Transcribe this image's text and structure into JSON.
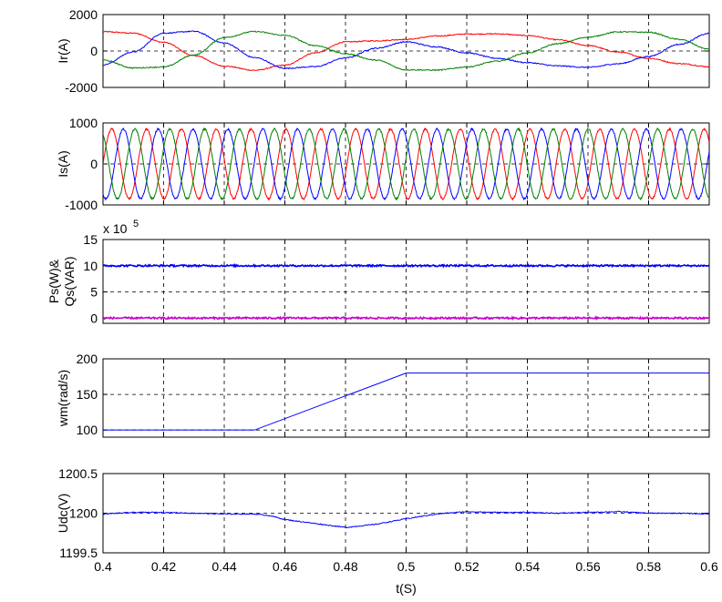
{
  "chart_data": [
    {
      "type": "line",
      "ylabel": "Ir(A)",
      "xlim": [
        0.4,
        0.6
      ],
      "ylim": [
        -2000,
        2000
      ],
      "yticks": [
        -2000,
        0,
        2000
      ],
      "grid": true,
      "series": [
        {
          "color": "#ff0000",
          "x": [
            0.4,
            0.41,
            0.42,
            0.43,
            0.44,
            0.45,
            0.46,
            0.47,
            0.48,
            0.49,
            0.5,
            0.51,
            0.52,
            0.53,
            0.54,
            0.55,
            0.56,
            0.57,
            0.58,
            0.59,
            0.6
          ],
          "y": [
            1060,
            980,
            480,
            -250,
            -830,
            -1060,
            -780,
            -100,
            500,
            560,
            640,
            820,
            930,
            940,
            850,
            620,
            300,
            -60,
            -400,
            -690,
            -860
          ]
        },
        {
          "color": "#0000ff",
          "x": [
            0.4,
            0.41,
            0.42,
            0.43,
            0.44,
            0.45,
            0.46,
            0.47,
            0.48,
            0.49,
            0.5,
            0.51,
            0.52,
            0.53,
            0.54,
            0.55,
            0.56,
            0.57,
            0.58,
            0.59,
            0.6
          ],
          "y": [
            -760,
            -50,
            980,
            1080,
            440,
            -360,
            -950,
            -860,
            -380,
            150,
            500,
            230,
            -100,
            -400,
            -640,
            -820,
            -900,
            -700,
            -300,
            360,
            960
          ]
        },
        {
          "color": "#008000",
          "x": [
            0.4,
            0.41,
            0.42,
            0.43,
            0.44,
            0.45,
            0.46,
            0.47,
            0.48,
            0.49,
            0.5,
            0.51,
            0.52,
            0.53,
            0.54,
            0.55,
            0.56,
            0.57,
            0.58,
            0.59,
            0.6
          ],
          "y": [
            -500,
            -930,
            -880,
            -220,
            740,
            1070,
            860,
            300,
            -150,
            -500,
            -1030,
            -1050,
            -880,
            -560,
            -100,
            400,
            760,
            1050,
            1030,
            640,
            100
          ]
        }
      ]
    },
    {
      "type": "line",
      "ylabel": "Is(A)",
      "xlim": [
        0.4,
        0.6
      ],
      "ylim": [
        -1000,
        1000
      ],
      "yticks": [
        -1000,
        0,
        1000
      ],
      "grid": true,
      "sine": {
        "amplitude": 850,
        "period": 0.0115,
        "phases_deg": [
          0,
          -120,
          120
        ]
      },
      "series": [
        {
          "color": "#ff0000"
        },
        {
          "color": "#0000ff"
        },
        {
          "color": "#008000"
        }
      ]
    },
    {
      "type": "line",
      "ylabel": "Ps(W)&\nQs(VAR)",
      "exponent_label": "x 10",
      "exponent_power": "5",
      "xlim": [
        0.4,
        0.6
      ],
      "ylim": [
        -1,
        15
      ],
      "yticks": [
        0,
        5,
        10,
        15
      ],
      "grid": true,
      "series": [
        {
          "color": "#0000ff",
          "x": [
            0.4,
            0.6
          ],
          "y": [
            10,
            10
          ]
        },
        {
          "color": "#cc00cc",
          "x": [
            0.4,
            0.6
          ],
          "y": [
            0,
            0
          ]
        }
      ]
    },
    {
      "type": "line",
      "ylabel": "wm(rad/s)",
      "xlim": [
        0.4,
        0.6
      ],
      "ylim": [
        90,
        200
      ],
      "yticks": [
        100,
        150,
        200
      ],
      "grid": true,
      "series": [
        {
          "color": "#0000ff",
          "x": [
            0.4,
            0.45,
            0.5,
            0.6
          ],
          "y": [
            100,
            100,
            180,
            180
          ]
        }
      ]
    },
    {
      "type": "line",
      "ylabel": "Udc(V)",
      "xlabel": "t(S)",
      "xlim": [
        0.4,
        0.6
      ],
      "ylim": [
        1199.5,
        1200.5
      ],
      "yticks": [
        1199.5,
        1200,
        1200.5
      ],
      "xticks": [
        0.4,
        0.42,
        0.44,
        0.46,
        0.48,
        0.5,
        0.52,
        0.54,
        0.56,
        0.58,
        0.6
      ],
      "grid": true,
      "series": [
        {
          "color": "#0000ff",
          "x": [
            0.4,
            0.41,
            0.42,
            0.43,
            0.44,
            0.45,
            0.455,
            0.46,
            0.47,
            0.48,
            0.49,
            0.5,
            0.51,
            0.52,
            0.53,
            0.54,
            0.55,
            0.56,
            0.57,
            0.58,
            0.59,
            0.6
          ],
          "y": [
            1199.99,
            1200.01,
            1200.01,
            1200.0,
            1199.99,
            1199.99,
            1199.97,
            1199.92,
            1199.87,
            1199.82,
            1199.86,
            1199.93,
            1199.99,
            1200.02,
            1200.01,
            1200.01,
            1200.0,
            1200.01,
            1200.02,
            1200.0,
            1200.0,
            1199.99
          ]
        }
      ]
    }
  ]
}
